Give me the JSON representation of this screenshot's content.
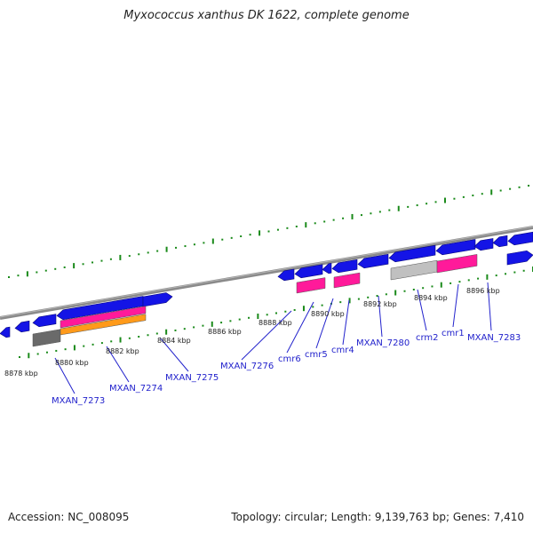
{
  "title": "Myxococcus xanthus DK 1622, complete genome",
  "footer": {
    "accession": "Accession: NC_008095",
    "summary": "Topology: circular; Length: 9,139,763 bp; Genes: 7,410"
  },
  "colors": {
    "backbone": "#8a8a8a",
    "tick": "#1a8a1a",
    "cds": "#1414e6",
    "rna_pink": "#ff1a9a",
    "orange": "#ff9a1a",
    "gray": "#6a6a6a",
    "lightgray": "#c0c0c0",
    "label": "#2222cc"
  },
  "kbp_labels": [
    "8878 kbp",
    "8880 kbp",
    "8882 kbp",
    "8884 kbp",
    "8886 kbp",
    "8888 kbp",
    "8890 kbp",
    "8892 kbp",
    "8894 kbp",
    "8896 kbp"
  ],
  "gene_labels": [
    "MXAN_7273",
    "MXAN_7274",
    "MXAN_7275",
    "MXAN_7276",
    "cmr6",
    "cmr5",
    "cmr4",
    "MXAN_7280",
    "crm2",
    "cmr1",
    "MXAN_7283"
  ]
}
